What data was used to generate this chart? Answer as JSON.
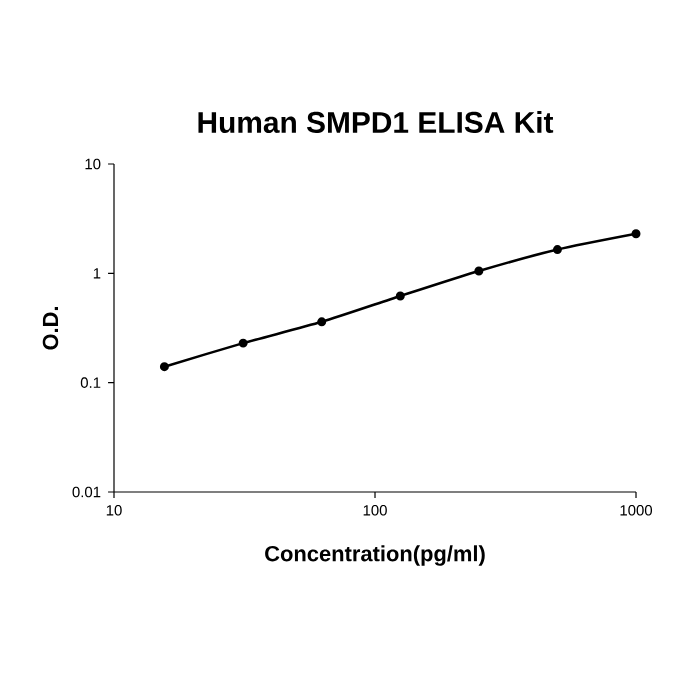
{
  "chart_data": {
    "type": "line",
    "title": "Human SMPD1 ELISA Kit",
    "xlabel": "Concentration(pg/ml)",
    "ylabel": "O.D.",
    "x": [
      15.6,
      31.25,
      62.5,
      125,
      250,
      500,
      1000
    ],
    "series": [
      {
        "color": "#000000",
        "values": [
          0.14,
          0.23,
          0.36,
          0.62,
          1.05,
          1.65,
          2.3
        ]
      }
    ],
    "xlim": [
      10,
      1000
    ],
    "ylim": [
      0.01,
      10
    ],
    "xticks": [
      10,
      100,
      1000
    ],
    "yticks": [
      0.01,
      0.1,
      1,
      10
    ],
    "log": "xy",
    "marker": "circle",
    "line_style": "solid",
    "grid": false
  }
}
